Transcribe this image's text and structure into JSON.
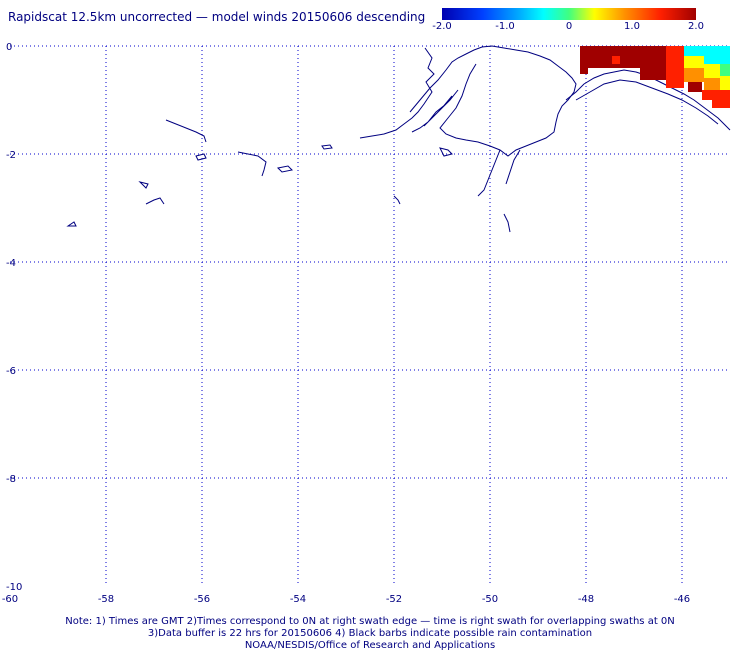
{
  "title": "Rapidscat 12.5km uncorrected — model winds 20150606 descending",
  "colorbar": {
    "ticks": [
      "-2.0",
      "-1.0",
      "0",
      "1.0",
      "2.0"
    ],
    "range": [
      -2.0,
      2.0
    ],
    "colors": [
      "#0000b0",
      "#00a8ff",
      "#00ffff",
      "#ffff00",
      "#ff9000",
      "#ff2000",
      "#a00000"
    ]
  },
  "axes": {
    "x_ticks": [
      "-60",
      "-58",
      "-56",
      "-54",
      "-52",
      "-50",
      "-48",
      "-46"
    ],
    "y_ticks": [
      "0",
      "-2",
      "-4",
      "-6",
      "-8",
      "-10"
    ],
    "x_range": [
      -60,
      -45
    ],
    "y_range": [
      -10,
      0
    ],
    "grid": "dotted",
    "grid_color": "#0000cc",
    "coast_color": "#000080"
  },
  "footer": {
    "line1": "Note: 1) Times are GMT 2)Times correspond to 0N at right swath edge — time is right swath for overlapping swaths at 0N",
    "line2": "3)Data buffer is 22 hrs for 20150606 4) Black barbs indicate possible rain contamination",
    "line3": "NOAA/NESDIS/Office of Research and Applications"
  }
}
